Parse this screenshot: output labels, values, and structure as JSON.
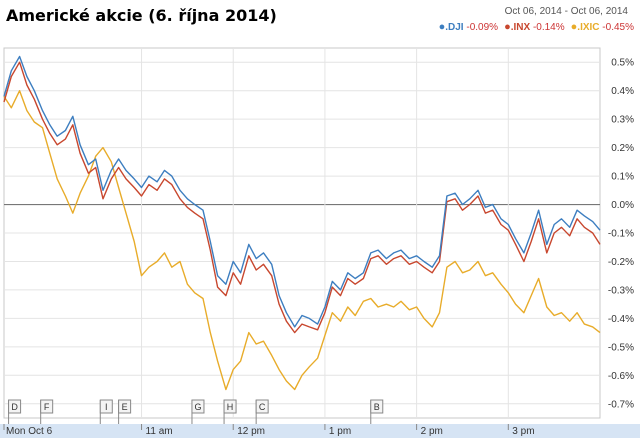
{
  "chart_data": {
    "type": "line",
    "title": "Americké akcie (6. října 2014)",
    "date_range": "Oct 06, 2014  -  Oct 06, 2014",
    "x_tick_labels": [
      "Mon Oct 6",
      "11 am",
      "12 pm",
      "1 pm",
      "2 pm",
      "3 pm"
    ],
    "x_tick_positions_hours": [
      9.5,
      11,
      12,
      13,
      14,
      15
    ],
    "xlim_hours": [
      9.5,
      16
    ],
    "y_tick_labels": [
      "0.5%",
      "0.4%",
      "0.3%",
      "0.2%",
      "0.1%",
      "0.0%",
      "-0.1%",
      "-0.2%",
      "-0.3%",
      "-0.4%",
      "-0.5%",
      "-0.6%",
      "-0.7%"
    ],
    "ylim": [
      -0.75,
      0.55
    ],
    "y_unit": "%",
    "grid": true,
    "legend_position": "top-right",
    "series": [
      {
        "name": ".DJI",
        "change": "-0.09%",
        "color": "#3d7ec0",
        "points": [
          [
            9.5,
            0.38
          ],
          [
            9.58,
            0.47
          ],
          [
            9.67,
            0.52
          ],
          [
            9.75,
            0.45
          ],
          [
            9.83,
            0.4
          ],
          [
            9.92,
            0.33
          ],
          [
            10.0,
            0.28
          ],
          [
            10.08,
            0.24
          ],
          [
            10.17,
            0.26
          ],
          [
            10.25,
            0.31
          ],
          [
            10.33,
            0.21
          ],
          [
            10.42,
            0.14
          ],
          [
            10.5,
            0.16
          ],
          [
            10.58,
            0.05
          ],
          [
            10.67,
            0.12
          ],
          [
            10.75,
            0.16
          ],
          [
            10.83,
            0.12
          ],
          [
            10.92,
            0.09
          ],
          [
            11.0,
            0.06
          ],
          [
            11.08,
            0.1
          ],
          [
            11.17,
            0.08
          ],
          [
            11.25,
            0.12
          ],
          [
            11.33,
            0.1
          ],
          [
            11.42,
            0.05
          ],
          [
            11.5,
            0.02
          ],
          [
            11.58,
            0.0
          ],
          [
            11.67,
            -0.02
          ],
          [
            11.75,
            -0.13
          ],
          [
            11.83,
            -0.25
          ],
          [
            11.92,
            -0.28
          ],
          [
            12.0,
            -0.2
          ],
          [
            12.08,
            -0.24
          ],
          [
            12.17,
            -0.14
          ],
          [
            12.25,
            -0.19
          ],
          [
            12.33,
            -0.17
          ],
          [
            12.42,
            -0.21
          ],
          [
            12.5,
            -0.32
          ],
          [
            12.58,
            -0.38
          ],
          [
            12.67,
            -0.43
          ],
          [
            12.75,
            -0.39
          ],
          [
            12.83,
            -0.4
          ],
          [
            12.92,
            -0.42
          ],
          [
            13.0,
            -0.36
          ],
          [
            13.08,
            -0.27
          ],
          [
            13.17,
            -0.3
          ],
          [
            13.25,
            -0.24
          ],
          [
            13.33,
            -0.26
          ],
          [
            13.42,
            -0.24
          ],
          [
            13.5,
            -0.17
          ],
          [
            13.58,
            -0.16
          ],
          [
            13.67,
            -0.19
          ],
          [
            13.75,
            -0.17
          ],
          [
            13.83,
            -0.16
          ],
          [
            13.92,
            -0.19
          ],
          [
            14.0,
            -0.18
          ],
          [
            14.08,
            -0.2
          ],
          [
            14.17,
            -0.22
          ],
          [
            14.25,
            -0.18
          ],
          [
            14.33,
            0.03
          ],
          [
            14.42,
            0.04
          ],
          [
            14.5,
            0.0
          ],
          [
            14.58,
            0.02
          ],
          [
            14.67,
            0.05
          ],
          [
            14.75,
            -0.01
          ],
          [
            14.83,
            0.0
          ],
          [
            14.92,
            -0.05
          ],
          [
            15.0,
            -0.07
          ],
          [
            15.08,
            -0.12
          ],
          [
            15.17,
            -0.17
          ],
          [
            15.25,
            -0.1
          ],
          [
            15.33,
            -0.02
          ],
          [
            15.42,
            -0.14
          ],
          [
            15.5,
            -0.07
          ],
          [
            15.58,
            -0.05
          ],
          [
            15.67,
            -0.08
          ],
          [
            15.75,
            -0.02
          ],
          [
            15.83,
            -0.04
          ],
          [
            15.92,
            -0.06
          ],
          [
            16.0,
            -0.09
          ]
        ]
      },
      {
        "name": ".INX",
        "change": "-0.14%",
        "color": "#c8472e",
        "points": [
          [
            9.5,
            0.36
          ],
          [
            9.58,
            0.45
          ],
          [
            9.67,
            0.5
          ],
          [
            9.75,
            0.42
          ],
          [
            9.83,
            0.37
          ],
          [
            9.92,
            0.3
          ],
          [
            10.0,
            0.25
          ],
          [
            10.08,
            0.21
          ],
          [
            10.17,
            0.23
          ],
          [
            10.25,
            0.28
          ],
          [
            10.33,
            0.18
          ],
          [
            10.42,
            0.11
          ],
          [
            10.5,
            0.13
          ],
          [
            10.58,
            0.02
          ],
          [
            10.67,
            0.09
          ],
          [
            10.75,
            0.13
          ],
          [
            10.83,
            0.09
          ],
          [
            10.92,
            0.06
          ],
          [
            11.0,
            0.03
          ],
          [
            11.08,
            0.07
          ],
          [
            11.17,
            0.05
          ],
          [
            11.25,
            0.09
          ],
          [
            11.33,
            0.07
          ],
          [
            11.42,
            0.02
          ],
          [
            11.5,
            -0.01
          ],
          [
            11.58,
            -0.03
          ],
          [
            11.67,
            -0.05
          ],
          [
            11.75,
            -0.16
          ],
          [
            11.83,
            -0.29
          ],
          [
            11.92,
            -0.32
          ],
          [
            12.0,
            -0.24
          ],
          [
            12.08,
            -0.28
          ],
          [
            12.17,
            -0.18
          ],
          [
            12.25,
            -0.23
          ],
          [
            12.33,
            -0.21
          ],
          [
            12.42,
            -0.25
          ],
          [
            12.5,
            -0.35
          ],
          [
            12.58,
            -0.41
          ],
          [
            12.67,
            -0.45
          ],
          [
            12.75,
            -0.42
          ],
          [
            12.83,
            -0.43
          ],
          [
            12.92,
            -0.44
          ],
          [
            13.0,
            -0.38
          ],
          [
            13.08,
            -0.29
          ],
          [
            13.17,
            -0.32
          ],
          [
            13.25,
            -0.26
          ],
          [
            13.33,
            -0.28
          ],
          [
            13.42,
            -0.26
          ],
          [
            13.5,
            -0.19
          ],
          [
            13.58,
            -0.18
          ],
          [
            13.67,
            -0.21
          ],
          [
            13.75,
            -0.19
          ],
          [
            13.83,
            -0.18
          ],
          [
            13.92,
            -0.21
          ],
          [
            14.0,
            -0.2
          ],
          [
            14.08,
            -0.22
          ],
          [
            14.17,
            -0.24
          ],
          [
            14.25,
            -0.2
          ],
          [
            14.33,
            0.01
          ],
          [
            14.42,
            0.02
          ],
          [
            14.5,
            -0.02
          ],
          [
            14.58,
            0.0
          ],
          [
            14.67,
            0.03
          ],
          [
            14.75,
            -0.03
          ],
          [
            14.83,
            -0.02
          ],
          [
            14.92,
            -0.07
          ],
          [
            15.0,
            -0.09
          ],
          [
            15.08,
            -0.14
          ],
          [
            15.17,
            -0.2
          ],
          [
            15.25,
            -0.13
          ],
          [
            15.33,
            -0.05
          ],
          [
            15.42,
            -0.17
          ],
          [
            15.5,
            -0.1
          ],
          [
            15.58,
            -0.08
          ],
          [
            15.67,
            -0.11
          ],
          [
            15.75,
            -0.05
          ],
          [
            15.83,
            -0.08
          ],
          [
            15.92,
            -0.1
          ],
          [
            16.0,
            -0.14
          ]
        ]
      },
      {
        "name": ".IXIC",
        "change": "-0.45%",
        "color": "#e8ac2a",
        "points": [
          [
            9.5,
            0.38
          ],
          [
            9.58,
            0.34
          ],
          [
            9.67,
            0.4
          ],
          [
            9.75,
            0.33
          ],
          [
            9.83,
            0.29
          ],
          [
            9.92,
            0.27
          ],
          [
            10.0,
            0.18
          ],
          [
            10.08,
            0.09
          ],
          [
            10.17,
            0.03
          ],
          [
            10.25,
            -0.03
          ],
          [
            10.33,
            0.04
          ],
          [
            10.42,
            0.1
          ],
          [
            10.5,
            0.17
          ],
          [
            10.58,
            0.2
          ],
          [
            10.67,
            0.15
          ],
          [
            10.75,
            0.06
          ],
          [
            10.83,
            -0.03
          ],
          [
            10.92,
            -0.13
          ],
          [
            11.0,
            -0.25
          ],
          [
            11.08,
            -0.22
          ],
          [
            11.17,
            -0.2
          ],
          [
            11.25,
            -0.17
          ],
          [
            11.33,
            -0.22
          ],
          [
            11.42,
            -0.2
          ],
          [
            11.5,
            -0.28
          ],
          [
            11.58,
            -0.31
          ],
          [
            11.67,
            -0.33
          ],
          [
            11.75,
            -0.45
          ],
          [
            11.83,
            -0.55
          ],
          [
            11.92,
            -0.65
          ],
          [
            12.0,
            -0.58
          ],
          [
            12.08,
            -0.55
          ],
          [
            12.17,
            -0.45
          ],
          [
            12.25,
            -0.49
          ],
          [
            12.33,
            -0.48
          ],
          [
            12.42,
            -0.53
          ],
          [
            12.5,
            -0.58
          ],
          [
            12.58,
            -0.62
          ],
          [
            12.67,
            -0.65
          ],
          [
            12.75,
            -0.6
          ],
          [
            12.83,
            -0.57
          ],
          [
            12.92,
            -0.54
          ],
          [
            13.0,
            -0.46
          ],
          [
            13.08,
            -0.38
          ],
          [
            13.17,
            -0.41
          ],
          [
            13.25,
            -0.36
          ],
          [
            13.33,
            -0.39
          ],
          [
            13.42,
            -0.34
          ],
          [
            13.5,
            -0.33
          ],
          [
            13.58,
            -0.36
          ],
          [
            13.67,
            -0.35
          ],
          [
            13.75,
            -0.36
          ],
          [
            13.83,
            -0.34
          ],
          [
            13.92,
            -0.37
          ],
          [
            14.0,
            -0.36
          ],
          [
            14.08,
            -0.4
          ],
          [
            14.17,
            -0.43
          ],
          [
            14.25,
            -0.38
          ],
          [
            14.33,
            -0.22
          ],
          [
            14.42,
            -0.2
          ],
          [
            14.5,
            -0.24
          ],
          [
            14.58,
            -0.23
          ],
          [
            14.67,
            -0.2
          ],
          [
            14.75,
            -0.25
          ],
          [
            14.83,
            -0.24
          ],
          [
            14.92,
            -0.28
          ],
          [
            15.0,
            -0.31
          ],
          [
            15.08,
            -0.35
          ],
          [
            15.17,
            -0.38
          ],
          [
            15.25,
            -0.32
          ],
          [
            15.33,
            -0.26
          ],
          [
            15.42,
            -0.36
          ],
          [
            15.5,
            -0.39
          ],
          [
            15.58,
            -0.38
          ],
          [
            15.67,
            -0.41
          ],
          [
            15.75,
            -0.38
          ],
          [
            15.83,
            -0.42
          ],
          [
            15.92,
            -0.43
          ],
          [
            16.0,
            -0.45
          ]
        ]
      }
    ],
    "news_flags": [
      {
        "label": "D",
        "hour": 9.55
      },
      {
        "label": "F",
        "hour": 9.9
      },
      {
        "label": "I",
        "hour": 10.55
      },
      {
        "label": "E",
        "hour": 10.75
      },
      {
        "label": "G",
        "hour": 11.55
      },
      {
        "label": "H",
        "hour": 11.9
      },
      {
        "label": "C",
        "hour": 12.25
      },
      {
        "label": "B",
        "hour": 13.5
      }
    ]
  }
}
